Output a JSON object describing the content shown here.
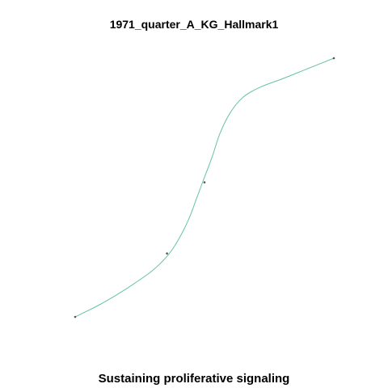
{
  "chart_data": {
    "type": "line",
    "title": "1971_quarter_A_KG_Hallmark1",
    "xlabel": "Sustaining proliferative signaling",
    "ylabel": "",
    "series": [
      {
        "color": "#66c2a5",
        "points": [
          [
            0.0,
            0.0
          ],
          [
            0.1,
            0.05
          ],
          [
            0.2,
            0.11
          ],
          [
            0.3,
            0.18
          ],
          [
            0.36,
            0.24
          ],
          [
            0.4,
            0.3
          ],
          [
            0.44,
            0.38
          ],
          [
            0.47,
            0.46
          ],
          [
            0.5,
            0.54
          ],
          [
            0.53,
            0.62
          ],
          [
            0.56,
            0.71
          ],
          [
            0.6,
            0.79
          ],
          [
            0.65,
            0.85
          ],
          [
            0.72,
            0.89
          ],
          [
            0.8,
            0.92
          ],
          [
            0.9,
            0.96
          ],
          [
            1.0,
            1.0
          ]
        ]
      }
    ],
    "markers": [
      [
        0.0,
        0.0
      ],
      [
        0.355,
        0.245
      ],
      [
        0.5,
        0.52
      ],
      [
        1.0,
        1.0
      ]
    ],
    "xlim": [
      0,
      1
    ],
    "ylim": [
      0,
      1
    ],
    "grid": false,
    "legend": "none"
  }
}
